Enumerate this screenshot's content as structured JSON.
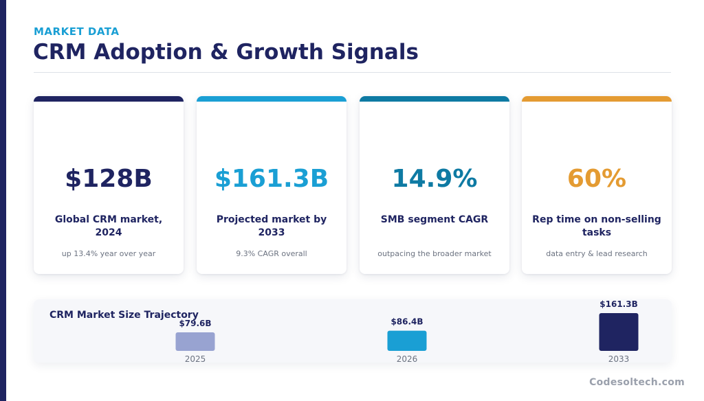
{
  "header": {
    "eyebrow": "MARKET DATA",
    "title": "CRM Adoption & Growth Signals"
  },
  "cards": [
    {
      "value": "$128B",
      "label": "Global CRM market, 2024",
      "note": "up 13.4% year over year",
      "accent": "#1f2461"
    },
    {
      "value": "$161.3B",
      "label": "Projected market by 2033",
      "note": "9.3% CAGR overall",
      "accent": "#1a9fd4"
    },
    {
      "value": "14.9%",
      "label": "SMB segment CAGR",
      "note": "outpacing the broader market",
      "accent": "#0e7aa3"
    },
    {
      "value": "60%",
      "label": "Rep time on non-selling tasks",
      "note": "data entry & lead research",
      "accent": "#e49b32"
    }
  ],
  "chart_data": {
    "type": "bar",
    "title": "CRM Market Size Trajectory",
    "categories": [
      "2025",
      "2026",
      "2033"
    ],
    "values": [
      79.6,
      86.4,
      161.3
    ],
    "value_labels": [
      "$79.6B",
      "$86.4B",
      "$161.3B"
    ],
    "colors": [
      "#98a3d1",
      "#1a9fd4",
      "#1f2461"
    ],
    "grid": false,
    "legend": "none"
  },
  "footer": {
    "brand": "Codesoltech.com"
  }
}
